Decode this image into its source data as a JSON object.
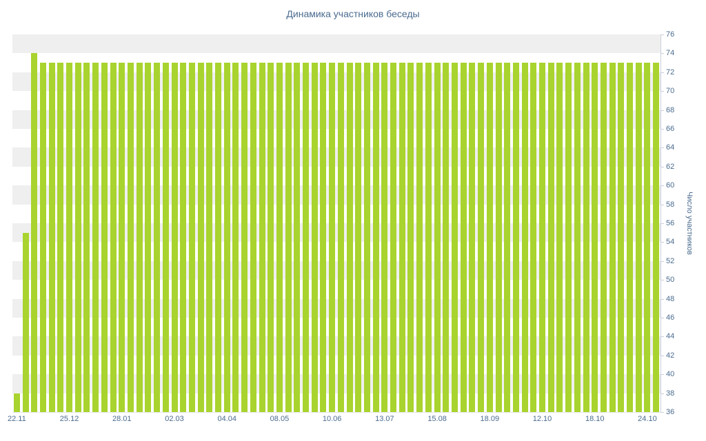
{
  "chart_data": {
    "type": "bar",
    "title": "Динамика участников беседы",
    "xlabel": "",
    "ylabel": "Число участников",
    "ylim": [
      36,
      76
    ],
    "ytick_step": 2,
    "yticks": [
      76,
      74,
      72,
      70,
      68,
      66,
      64,
      62,
      60,
      58,
      56,
      54,
      52,
      50,
      48,
      46,
      44,
      42,
      40,
      38,
      36
    ],
    "x_tick_labels": [
      "22.11",
      "25.12",
      "28.01",
      "02.03",
      "04.04",
      "08.05",
      "10.06",
      "13.07",
      "15.08",
      "18.09",
      "12.10",
      "18.10",
      "24.10"
    ],
    "x_label_every": 6,
    "values": [
      38,
      55,
      74,
      73,
      73,
      73,
      73,
      73,
      73,
      73,
      73,
      73,
      73,
      73,
      73,
      73,
      73,
      73,
      73,
      73,
      73,
      73,
      73,
      73,
      73,
      73,
      73,
      73,
      73,
      73,
      73,
      73,
      73,
      73,
      73,
      73,
      73,
      73,
      73,
      73,
      73,
      73,
      73,
      73,
      73,
      73,
      73,
      73,
      73,
      73,
      73,
      73,
      73,
      73,
      73,
      73,
      73,
      73,
      73,
      73,
      73,
      73,
      73,
      73,
      73,
      73,
      73,
      73,
      73,
      73,
      73,
      73,
      73,
      73
    ],
    "grid": "alternating-horizontal-bands",
    "legend": "none",
    "y_axis_position": "right",
    "colors": {
      "bar": "#a9d32e",
      "band": "#efefef",
      "axis": "#c7d0d9",
      "text": "#4a6b8f"
    }
  }
}
